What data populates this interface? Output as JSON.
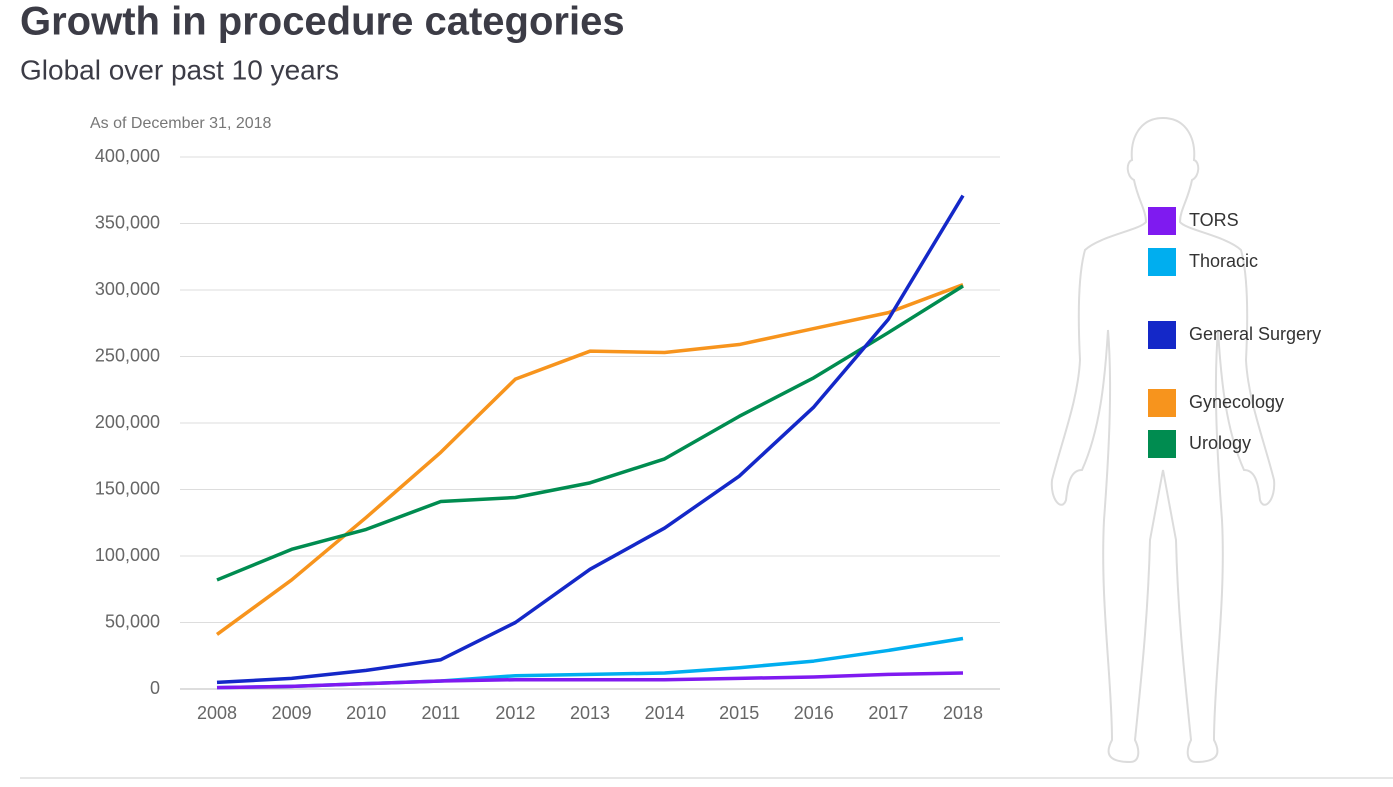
{
  "chart_data": {
    "type": "line",
    "title": "Growth in procedure categories",
    "subtitle": "Global over past 10 years",
    "annotation": "As of December 31, 2018",
    "categories": [
      "2008",
      "2009",
      "2010",
      "2011",
      "2012",
      "2013",
      "2014",
      "2015",
      "2016",
      "2017",
      "2018"
    ],
    "ylim": [
      0,
      400000
    ],
    "yticks": [
      0,
      {
        "value": 50000,
        "label": "50,000"
      },
      {
        "value": 100000,
        "label": "100,000"
      },
      {
        "value": 150000,
        "label": "150,000"
      },
      {
        "value": 200000,
        "label": "200,000"
      },
      {
        "value": 250000,
        "label": "250,000"
      },
      {
        "value": 300000,
        "label": "300,000"
      },
      {
        "value": 350000,
        "label": "350,000"
      },
      {
        "value": 400000,
        "label": "400,000"
      }
    ],
    "grid": true,
    "series": [
      {
        "name": "TORS",
        "color": "#7f1af0",
        "values": [
          1000,
          2000,
          4000,
          6000,
          7000,
          7000,
          7000,
          8000,
          9000,
          11000,
          12000
        ]
      },
      {
        "name": "Thoracic",
        "color": "#00aeef",
        "values": [
          1000,
          2000,
          4000,
          6000,
          10000,
          11000,
          12000,
          16000,
          21000,
          29000,
          38000
        ]
      },
      {
        "name": "General Surgery",
        "color": "#1428c8",
        "values": [
          5000,
          8000,
          14000,
          22000,
          50000,
          90000,
          121000,
          160000,
          212000,
          278000,
          371000
        ]
      },
      {
        "name": "Gynecology",
        "color": "#f7941d",
        "values": [
          41000,
          82000,
          129000,
          178000,
          233000,
          254000,
          253000,
          259000,
          271000,
          283000,
          304000
        ]
      },
      {
        "name": "Urology",
        "color": "#008c50",
        "values": [
          82000,
          105000,
          120000,
          141000,
          144000,
          155000,
          173000,
          205000,
          234000,
          268000,
          303000
        ]
      }
    ]
  }
}
